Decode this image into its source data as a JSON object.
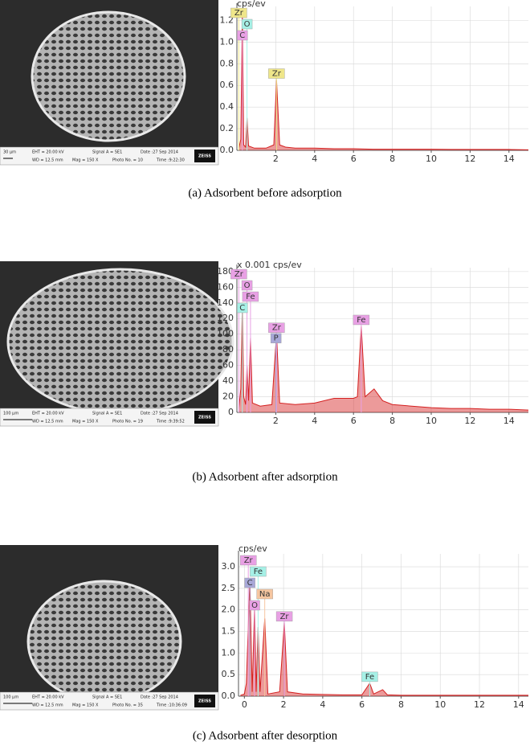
{
  "chart_data": [
    {
      "type": "line",
      "ylabel": "cps/ev",
      "color": "#d42020",
      "grid": true,
      "xlim": [
        0,
        15
      ],
      "xticks": [
        2,
        4,
        6,
        8,
        10,
        12,
        14
      ],
      "ylim": [
        0,
        1.33
      ],
      "yticks": [
        {
          "value": 0,
          "label": "0.0"
        },
        0.2,
        0.4,
        0.6,
        0.8,
        {
          "value": 1,
          "label": "1.0"
        },
        1.2
      ],
      "x": [
        0.1,
        0.2,
        0.28,
        0.35,
        0.45,
        0.52,
        0.6,
        0.9,
        1.5,
        1.9,
        2.04,
        2.2,
        2.5,
        3,
        4,
        5,
        6,
        7,
        8,
        9,
        10,
        11,
        12,
        13,
        14,
        15
      ],
      "values": [
        0.02,
        0.1,
        1.27,
        0.05,
        0.03,
        0.3,
        0.04,
        0.02,
        0.02,
        0.05,
        0.65,
        0.05,
        0.03,
        0.02,
        0.02,
        0.015,
        0.015,
        0.01,
        0.01,
        0.01,
        0.01,
        0.008,
        0.008,
        0.008,
        0.008,
        0.005
      ],
      "annotations": [
        {
          "text": "Zr",
          "x": 0.1,
          "color": "#efe68a"
        },
        {
          "text": "O",
          "x": 0.52,
          "color": "#a6f0e6"
        },
        {
          "text": "C",
          "x": 0.28,
          "color": "#e8a0e4"
        },
        {
          "text": "Zr",
          "x": 2.04,
          "color": "#efe68a"
        }
      ]
    },
    {
      "type": "line",
      "ylabel": "x 0.001 cps/ev",
      "color": "#d42020",
      "grid": true,
      "xlim": [
        0,
        15
      ],
      "xticks": [
        2,
        4,
        6,
        8,
        10,
        12,
        14
      ],
      "ylim": [
        0,
        185
      ],
      "yticks": [
        0,
        20,
        40,
        60,
        80,
        100,
        120,
        140,
        160,
        180
      ],
      "x": [
        0.1,
        0.2,
        0.28,
        0.35,
        0.45,
        0.52,
        0.6,
        0.7,
        0.8,
        1.2,
        1.8,
        2.04,
        2.2,
        3,
        4,
        5,
        6,
        6.2,
        6.4,
        6.6,
        7.06,
        7.5,
        8,
        9,
        10,
        11,
        12,
        13,
        14,
        15
      ],
      "values": [
        5,
        30,
        140,
        20,
        10,
        60,
        15,
        95,
        12,
        8,
        10,
        100,
        12,
        10,
        12,
        18,
        18,
        20,
        110,
        20,
        30,
        15,
        10,
        8,
        6,
        5,
        5,
        4,
        4,
        3
      ],
      "annotations": [
        {
          "text": "Zr",
          "x": 0.1,
          "color": "#e8a0e4"
        },
        {
          "text": "O",
          "x": 0.52,
          "color": "#e8a0e4"
        },
        {
          "text": "Fe",
          "x": 0.7,
          "color": "#e8a0e4"
        },
        {
          "text": "C",
          "x": 0.28,
          "color": "#a6f0e6"
        },
        {
          "text": "Zr",
          "x": 2.04,
          "color": "#e8a0e4"
        },
        {
          "text": "P",
          "x": 2.01,
          "color": "#a8a8d8"
        },
        {
          "text": "Fe",
          "x": 6.4,
          "color": "#e8a0e4"
        }
      ]
    },
    {
      "type": "line",
      "ylabel": "cps/ev",
      "color": "#d42020",
      "grid": true,
      "xlim": [
        -0.3,
        14.5
      ],
      "xticks": [
        0,
        2,
        4,
        6,
        8,
        10,
        12,
        14
      ],
      "ylim": [
        0,
        3.3
      ],
      "yticks": [
        {
          "value": 0,
          "label": "0.0"
        },
        0.5,
        {
          "value": 1,
          "label": "1.0"
        },
        1.5,
        {
          "value": 2,
          "label": "2.0"
        },
        2.5,
        {
          "value": 3,
          "label": "3.0"
        }
      ],
      "x": [
        -0.2,
        0,
        0.1,
        0.28,
        0.4,
        0.52,
        0.6,
        0.7,
        0.8,
        1.04,
        1.2,
        1.8,
        2.04,
        2.2,
        3,
        4,
        5,
        6,
        6.4,
        6.6,
        7.06,
        7.3,
        8,
        9,
        10,
        11,
        12,
        13,
        14,
        14.5
      ],
      "values": [
        0.02,
        0.05,
        0.3,
        2.7,
        0.1,
        2.1,
        0.1,
        1.6,
        0.1,
        1.8,
        0.05,
        0.1,
        1.7,
        0.1,
        0.05,
        0.04,
        0.03,
        0.03,
        0.3,
        0.05,
        0.15,
        0.03,
        0.02,
        0.02,
        0.02,
        0.02,
        0.02,
        0.02,
        0.02,
        0.02
      ],
      "annotations": [
        {
          "text": "Zr",
          "x": 0.2,
          "color": "#e8a0e4"
        },
        {
          "text": "Fe",
          "x": 0.7,
          "color": "#a6f0e6"
        },
        {
          "text": "C",
          "x": 0.28,
          "color": "#a8a8d8"
        },
        {
          "text": "Na",
          "x": 1.04,
          "color": "#f6c6a0"
        },
        {
          "text": "O",
          "x": 0.52,
          "color": "#e8a0e4"
        },
        {
          "text": "Zr",
          "x": 2.04,
          "color": "#e8a0e4"
        },
        {
          "text": "Fe",
          "x": 6.4,
          "color": "#a6f0e6"
        }
      ]
    }
  ],
  "images": [
    {
      "scale_bar": "30 µm",
      "info": [
        "EHT = 20.00 kV",
        "Signal A = SE1",
        "Date :27 Sep 2014",
        "WD = 12.5 mm",
        "Mag = 150 X",
        "Photo No. = 10",
        "Time :9:22:30"
      ],
      "logo": "ZEISS"
    },
    {
      "scale_bar": "100 µm",
      "info": [
        "EHT = 20.00 kV",
        "Signal A = SE1",
        "Date :27 Sep 2014",
        "WD = 12.5 mm",
        "Mag = 150 X",
        "Photo No. = 19",
        "Time :9:39:52"
      ],
      "logo": "ZEISS"
    },
    {
      "scale_bar": "100 µm",
      "info": [
        "EHT = 20.00 kV",
        "Signal A = SE1",
        "Date :27 Sep 2014",
        "WD = 12.5 mm",
        "Mag = 150 X",
        "Photo No. = 35",
        "Time :10:36:09"
      ],
      "logo": "ZEISS"
    }
  ],
  "captions": [
    "(a)  Adsorbent before adsorption",
    "(b)  Adsorbent after adsorption",
    "(c) Adsorbent after desorption"
  ]
}
